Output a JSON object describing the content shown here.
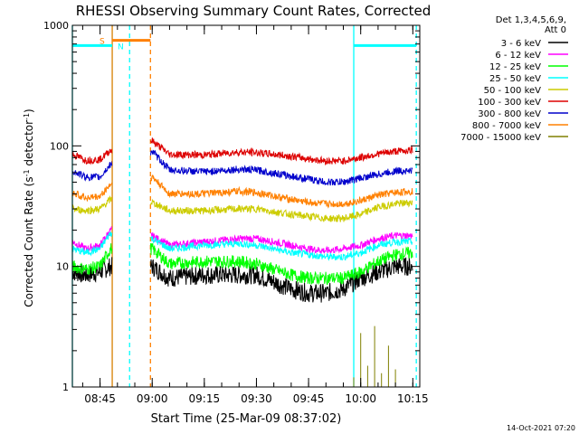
{
  "chart_data": {
    "type": "line",
    "title": "RHESSI Observing Summary Count Rates, Corrected",
    "xlabel": "Start Time (25-Mar-09 08:37:02)",
    "ylabel": "Corrected Count Rate (s",
    "ylabel_sup1": "-1",
    "ylabel_mid": " detector",
    "ylabel_sup2": "-1",
    "ylabel_end": ")",
    "yscale": "log",
    "ylim": [
      1,
      1000
    ],
    "xlim": [
      "08:37:02",
      "10:17:00"
    ],
    "x_ticks": [
      "08:45",
      "09:00",
      "09:15",
      "09:30",
      "09:45",
      "10:00",
      "10:15"
    ],
    "y_ticks": [
      "1",
      "10",
      "100",
      "1000"
    ],
    "legend": {
      "position": "top-right",
      "header": [
        "Det 1,3,4,5,6,9,",
        "Att 0"
      ],
      "entries": [
        {
          "label": "3 - 6 keV",
          "color": "#000000"
        },
        {
          "label": "6 - 12 keV",
          "color": "#ff00ff"
        },
        {
          "label": "12 - 25 keV",
          "color": "#00ff00"
        },
        {
          "label": "25 - 50 keV",
          "color": "#00ffff"
        },
        {
          "label": "50 - 100 keV",
          "color": "#cccc00"
        },
        {
          "label": "100 - 300 keV",
          "color": "#dd0000"
        },
        {
          "label": "300 - 800 keV",
          "color": "#0000cc"
        },
        {
          "label": "800 - 7000 keV",
          "color": "#ff8000"
        },
        {
          "label": "7000 - 15000 keV",
          "color": "#808000"
        }
      ]
    },
    "flags": [
      {
        "label": "S",
        "color": "#ff8000",
        "start": "08:48:30",
        "end": "08:59:30",
        "level": 750
      },
      {
        "label": "N",
        "color": "#00ffff",
        "start": "08:37:02",
        "end": "08:48:30",
        "level": 680
      },
      {
        "label": "",
        "color": "#00ffff",
        "start": "09:58:00",
        "end": "10:16:00",
        "level": 680
      }
    ],
    "boundary_lines": [
      {
        "time": "08:37:02",
        "color": "#00ffff",
        "style": "solid"
      },
      {
        "time": "08:48:30",
        "color": "#00ffff",
        "style": "solid"
      },
      {
        "time": "08:53:30",
        "color": "#00ffff",
        "style": "dashed"
      },
      {
        "time": "08:48:30",
        "color": "#ff8000",
        "style": "solid"
      },
      {
        "time": "08:59:30",
        "color": "#ff8000",
        "style": "dashed"
      },
      {
        "time": "09:58:00",
        "color": "#00ffff",
        "style": "solid"
      },
      {
        "time": "10:16:00",
        "color": "#00ffff",
        "style": "dashed"
      }
    ],
    "series": [
      {
        "name": "3 - 6 keV",
        "color": "#000000",
        "x": [
          "08:37",
          "08:41",
          "08:45",
          "08:48",
          "09:00",
          "09:05",
          "09:15",
          "09:25",
          "09:30",
          "09:40",
          "09:45",
          "09:50",
          "09:55",
          "10:00",
          "10:05",
          "10:10",
          "10:15"
        ],
        "y": [
          9,
          8.5,
          9,
          10,
          10,
          8,
          8.5,
          8.5,
          8.5,
          6.5,
          6,
          6,
          6.5,
          8,
          9,
          10,
          10
        ]
      },
      {
        "name": "6 - 12 keV",
        "color": "#ff00ff",
        "x": [
          "08:37",
          "08:41",
          "08:45",
          "08:48",
          "09:00",
          "09:05",
          "09:15",
          "09:25",
          "09:30",
          "09:40",
          "09:45",
          "09:50",
          "09:55",
          "10:00",
          "10:05",
          "10:10",
          "10:15"
        ],
        "y": [
          16,
          14,
          15,
          20,
          18,
          15,
          16,
          17,
          17,
          15,
          14,
          13.5,
          14,
          15,
          17,
          18,
          18
        ]
      },
      {
        "name": "12 - 25 keV",
        "color": "#00ff00",
        "x": [
          "08:37",
          "08:41",
          "08:45",
          "08:48",
          "09:00",
          "09:05",
          "09:15",
          "09:25",
          "09:30",
          "09:40",
          "09:45",
          "09:50",
          "09:55",
          "10:00",
          "10:05",
          "10:10",
          "10:15"
        ],
        "y": [
          10,
          9.5,
          10,
          14,
          14,
          10.5,
          11,
          11,
          10.5,
          8.5,
          8,
          8,
          8,
          9,
          11,
          12.5,
          13
        ]
      },
      {
        "name": "25 - 50 keV",
        "color": "#00ffff",
        "x": [
          "08:37",
          "08:41",
          "08:45",
          "08:48",
          "09:00",
          "09:05",
          "09:15",
          "09:25",
          "09:30",
          "09:40",
          "09:45",
          "09:50",
          "09:55",
          "10:00",
          "10:05",
          "10:10",
          "10:15"
        ],
        "y": [
          14,
          13,
          14,
          19,
          17,
          14,
          15,
          15.5,
          15,
          13,
          12.5,
          12,
          12,
          13,
          15,
          16,
          16
        ]
      },
      {
        "name": "50 - 100 keV",
        "color": "#cccc00",
        "x": [
          "08:37",
          "08:41",
          "08:45",
          "08:48",
          "09:00",
          "09:05",
          "09:15",
          "09:25",
          "09:30",
          "09:40",
          "09:45",
          "09:50",
          "09:55",
          "10:00",
          "10:05",
          "10:10",
          "10:15"
        ],
        "y": [
          30,
          29,
          30,
          36,
          34,
          29,
          29,
          30,
          30,
          27,
          26,
          25,
          25,
          27,
          31,
          33,
          34
        ]
      },
      {
        "name": "100 - 300 keV",
        "color": "#dd0000",
        "x": [
          "08:37",
          "08:41",
          "08:45",
          "08:48",
          "09:00",
          "09:05",
          "09:15",
          "09:25",
          "09:30",
          "09:40",
          "09:45",
          "09:50",
          "09:55",
          "10:00",
          "10:05",
          "10:10",
          "10:15"
        ],
        "y": [
          85,
          76,
          77,
          92,
          110,
          85,
          84,
          89,
          88,
          82,
          78,
          75,
          75,
          80,
          86,
          90,
          92
        ]
      },
      {
        "name": "300 - 800 keV",
        "color": "#0000cc",
        "x": [
          "08:37",
          "08:41",
          "08:45",
          "08:48",
          "09:00",
          "09:05",
          "09:15",
          "09:25",
          "09:30",
          "09:40",
          "09:45",
          "09:50",
          "09:55",
          "10:00",
          "10:05",
          "10:10",
          "10:15"
        ],
        "y": [
          62,
          55,
          55,
          70,
          90,
          63,
          61,
          64,
          63,
          56,
          53,
          50,
          50,
          54,
          58,
          62,
          62
        ]
      },
      {
        "name": "800 - 7000 keV",
        "color": "#ff8000",
        "x": [
          "08:37",
          "08:41",
          "08:45",
          "08:48",
          "09:00",
          "09:05",
          "09:15",
          "09:25",
          "09:30",
          "09:40",
          "09:45",
          "09:50",
          "09:55",
          "10:00",
          "10:05",
          "10:10",
          "10:15"
        ],
        "y": [
          41,
          37,
          38,
          48,
          55,
          40,
          40,
          42,
          41,
          36,
          34,
          33,
          33,
          35,
          39,
          41,
          42
        ]
      },
      {
        "name": "7000 - 15000 keV",
        "color": "#808000",
        "x": [
          "09:58",
          "10:00",
          "10:02",
          "10:04",
          "10:06",
          "10:08",
          "10:10"
        ],
        "y": [
          1.2,
          2.8,
          1.5,
          3.2,
          1.3,
          2.2,
          1.4
        ]
      }
    ]
  },
  "footer": {
    "generated": "14-Oct-2021 07:20"
  }
}
